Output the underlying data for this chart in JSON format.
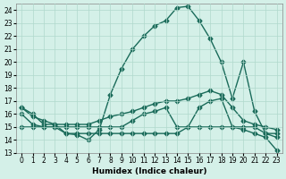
{
  "xlabel": "Humidex (Indice chaleur)",
  "bg_color": "#d4f0e8",
  "grid_color": "#b0d8cc",
  "line_color": "#1a6b5a",
  "xlim": [
    -0.5,
    23.5
  ],
  "ylim": [
    13,
    24.5
  ],
  "yticks": [
    13,
    14,
    15,
    16,
    17,
    18,
    19,
    20,
    21,
    22,
    23,
    24
  ],
  "xticks": [
    0,
    1,
    2,
    3,
    4,
    5,
    6,
    7,
    8,
    9,
    10,
    11,
    12,
    13,
    14,
    15,
    16,
    17,
    18,
    19,
    20,
    21,
    22,
    23
  ],
  "line1_x": [
    0,
    1,
    2,
    3,
    4,
    5,
    6,
    7,
    8,
    9,
    10,
    11,
    12,
    13,
    14,
    15,
    16,
    17,
    18,
    19,
    20,
    21,
    22,
    23
  ],
  "line1_y": [
    16.5,
    16.0,
    15.2,
    15.2,
    14.5,
    14.4,
    14.0,
    14.8,
    17.5,
    19.5,
    21.0,
    22.0,
    22.8,
    23.2,
    24.2,
    24.3,
    23.2,
    21.8,
    20.0,
    17.2,
    20.0,
    16.2,
    14.5,
    14.2
  ],
  "line2_x": [
    0,
    1,
    2,
    3,
    4,
    5,
    6,
    7,
    8,
    9,
    10,
    11,
    12,
    13,
    14,
    15,
    16,
    17,
    18,
    19,
    20,
    21,
    22,
    23
  ],
  "line2_y": [
    15.0,
    15.0,
    15.0,
    15.0,
    15.0,
    15.0,
    15.0,
    15.0,
    15.0,
    15.0,
    15.5,
    16.0,
    16.2,
    16.5,
    15.0,
    15.0,
    16.5,
    17.0,
    17.2,
    15.0,
    15.0,
    15.0,
    14.5,
    14.5
  ],
  "line3_x": [
    0,
    1,
    2,
    3,
    4,
    5,
    6,
    7,
    8,
    9,
    10,
    11,
    12,
    13,
    14,
    15,
    16,
    17,
    18,
    19,
    20,
    21,
    22,
    23
  ],
  "line3_y": [
    16.0,
    15.2,
    15.0,
    15.0,
    14.5,
    14.5,
    14.5,
    14.5,
    14.5,
    14.5,
    14.5,
    14.5,
    14.5,
    14.5,
    14.5,
    15.0,
    15.0,
    15.0,
    15.0,
    15.0,
    14.8,
    14.5,
    14.2,
    13.2
  ],
  "line4_x": [
    0,
    1,
    2,
    3,
    4,
    5,
    6,
    7,
    8,
    9,
    10,
    11,
    12,
    13,
    14,
    15,
    16,
    17,
    18,
    19,
    20,
    21,
    22,
    23
  ],
  "line4_y": [
    16.5,
    15.8,
    15.5,
    15.2,
    15.2,
    15.2,
    15.2,
    15.5,
    15.8,
    16.0,
    16.2,
    16.5,
    16.8,
    17.0,
    17.0,
    17.2,
    17.5,
    17.8,
    17.5,
    16.5,
    15.5,
    15.2,
    15.0,
    14.8
  ]
}
